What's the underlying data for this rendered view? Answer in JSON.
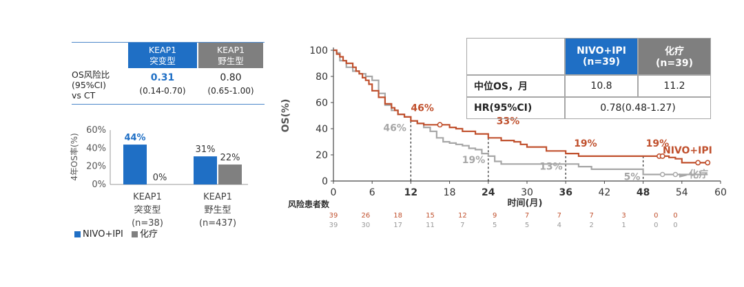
{
  "os_table": {
    "col1": [
      "KEAP1",
      "突变型"
    ],
    "col2": [
      "KEAP1",
      "野生型"
    ],
    "row_label": [
      "OS风险比",
      "(95%CI)",
      "vs CT"
    ],
    "val1": "0.31",
    "ci1": "(0.14-0.70)",
    "val2": "0.80",
    "ci2": "(0.65-1.00)"
  },
  "colors": {
    "blue": "#1f6fc5",
    "gray": "#808080",
    "orange": "#c0502d",
    "lightgray": "#a6a6a6"
  },
  "chart_data": [
    {
      "type": "bar",
      "ylabel": "4年OS率(%)",
      "ylim": [
        0,
        60
      ],
      "yticks": [
        "0%",
        "20%",
        "40%",
        "60%"
      ],
      "categories": [
        [
          "KEAP1",
          "突变型",
          "(n=38)"
        ],
        [
          "KEAP1",
          "野生型",
          "(n=437)"
        ]
      ],
      "series": [
        {
          "name": "NIVO+IPI",
          "values": [
            44,
            31
          ],
          "labels": [
            "44%",
            "31%"
          ]
        },
        {
          "name": "化疗",
          "values": [
            0,
            22
          ],
          "labels": [
            "0%",
            "22%"
          ]
        }
      ],
      "legend": "bottom"
    },
    {
      "type": "line",
      "ylabel": "OS(%)",
      "xlabel": "时间(月)",
      "xlim": [
        0,
        60
      ],
      "ylim": [
        0,
        100
      ],
      "xticks": [
        0,
        6,
        12,
        18,
        24,
        30,
        36,
        42,
        48,
        54,
        60
      ],
      "yticks": [
        0,
        20,
        40,
        60,
        80,
        100
      ],
      "series": [
        {
          "name": "NIVO+IPI",
          "color": "#c0502d",
          "x": [
            0,
            0.5,
            1,
            1.5,
            2,
            3,
            3.5,
            4,
            4.5,
            5,
            5.5,
            6,
            7,
            8,
            9,
            9.5,
            10,
            11,
            12,
            13,
            14,
            16,
            17,
            18,
            19,
            20,
            21,
            22,
            24,
            26,
            28,
            29,
            30,
            33,
            36,
            38,
            40,
            42,
            44,
            46,
            48,
            50,
            51,
            52,
            53,
            54,
            56,
            57,
            58
          ],
          "y": [
            100,
            97,
            95,
            92,
            90,
            87,
            84,
            82,
            79,
            77,
            74,
            69,
            64,
            59,
            56,
            54,
            51,
            49,
            46,
            44,
            43,
            43,
            43,
            41,
            40,
            38,
            38,
            36,
            33,
            31,
            30,
            28,
            26,
            23,
            21,
            19,
            19,
            19,
            19,
            19,
            19,
            19,
            19,
            18,
            17,
            14,
            14,
            14,
            14
          ],
          "annotations": [
            {
              "x": 12,
              "y": 46,
              "label": "46%"
            },
            {
              "x": 24,
              "y": 33,
              "label": "33%"
            },
            {
              "x": 36,
              "y": 19,
              "label": "19%"
            },
            {
              "x": 48,
              "y": 19,
              "label": "19%"
            }
          ],
          "label": "NIVO+IPI"
        },
        {
          "name": "化疗",
          "color": "#a6a6a6",
          "x": [
            0,
            0.5,
            1,
            2,
            3,
            4,
            5,
            6,
            7,
            8,
            9,
            10,
            11,
            12,
            13,
            14,
            15,
            16,
            17,
            18,
            19,
            20,
            21,
            22,
            23,
            24,
            25,
            26,
            28,
            30,
            33,
            36,
            38,
            40,
            42,
            44,
            46,
            48,
            50,
            52,
            54,
            56,
            58
          ],
          "y": [
            100,
            98,
            92,
            87,
            84,
            82,
            80,
            77,
            67,
            58,
            54,
            51,
            49,
            46,
            44,
            41,
            38,
            33,
            30,
            29,
            28,
            27,
            25,
            24,
            21,
            19,
            15,
            13,
            13,
            13,
            13,
            13,
            11,
            9,
            9,
            9,
            9,
            5,
            5,
            5,
            5,
            5,
            5
          ],
          "annotations": [
            {
              "x": 12,
              "y": 46,
              "label": "46%"
            },
            {
              "x": 24,
              "y": 19,
              "label": "19%"
            },
            {
              "x": 36,
              "y": 13,
              "label": "13%"
            },
            {
              "x": 48,
              "y": 5,
              "label": "5%"
            }
          ],
          "label": "化疗"
        }
      ],
      "risk_title": "风险患者数",
      "risk_nivo": [
        "39",
        "26",
        "18",
        "15",
        "12",
        "9",
        "7",
        "7",
        "7",
        "3",
        "0",
        "0"
      ],
      "risk_chemo": [
        "39",
        "30",
        "17",
        "11",
        "7",
        "5",
        "5",
        "4",
        "2",
        "1",
        "0",
        "0"
      ],
      "risk_x": [
        0,
        5,
        10,
        15,
        20,
        25,
        30,
        35,
        40,
        45,
        50,
        53
      ]
    }
  ],
  "summary_table": {
    "h1": [
      "NIVO+IPI",
      "(n=39)"
    ],
    "h2": [
      "化疗",
      "(n=39)"
    ],
    "r1_label": "中位OS，月",
    "r1_v1": "10.8",
    "r1_v2": "11.2",
    "r2_label": "HR(95%CI)",
    "r2_v": "0.78(0.48-1.27)"
  },
  "legend": {
    "nivo": "NIVO+IPI",
    "chemo": "化疗"
  }
}
